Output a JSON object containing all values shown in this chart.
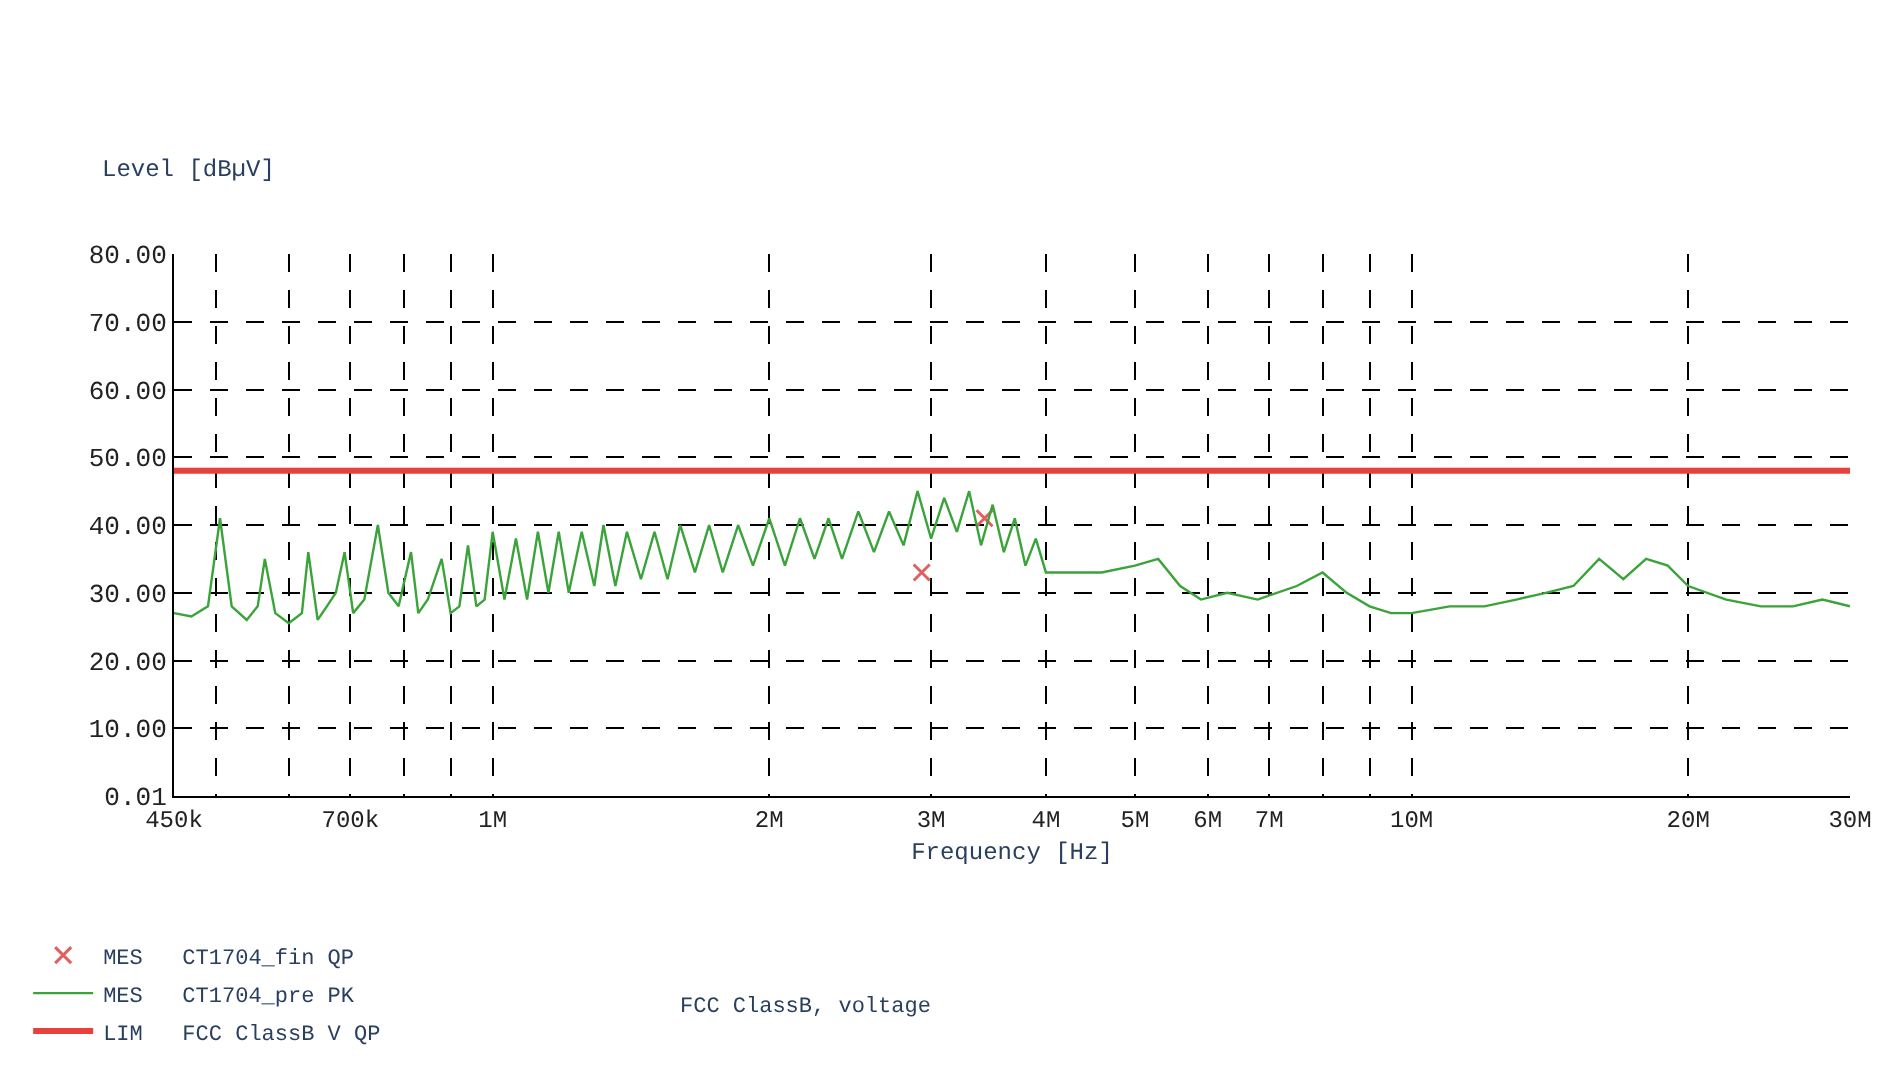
{
  "chart_data": {
    "type": "line",
    "ylabel": "Level [dBµV]",
    "xlabel": "Frequency [Hz]",
    "log": "x",
    "grid": true,
    "legend": "bottom left",
    "xlim": [
      450000,
      30000000
    ],
    "ylim": [
      0.01,
      80
    ],
    "xticks": [
      {
        "value": 450000,
        "label": "450k"
      },
      {
        "value": 500000,
        "label": null
      },
      {
        "value": 600000,
        "label": null
      },
      {
        "value": 700000,
        "label": "700k"
      },
      {
        "value": 800000,
        "label": null
      },
      {
        "value": 900000,
        "label": null
      },
      {
        "value": 1000000,
        "label": "1M"
      },
      {
        "value": 2000000,
        "label": "2M"
      },
      {
        "value": 3000000,
        "label": "3M"
      },
      {
        "value": 4000000,
        "label": "4M"
      },
      {
        "value": 5000000,
        "label": "5M"
      },
      {
        "value": 6000000,
        "label": "6M"
      },
      {
        "value": 7000000,
        "label": "7M"
      },
      {
        "value": 8000000,
        "label": null
      },
      {
        "value": 9000000,
        "label": null
      },
      {
        "value": 10000000,
        "label": "10M"
      },
      {
        "value": 20000000,
        "label": "20M"
      },
      {
        "value": 30000000,
        "label": "30M"
      }
    ],
    "yticks": [
      0.01,
      {
        "value": 10,
        "label": "10.00"
      },
      {
        "value": 20,
        "label": "20.00"
      },
      {
        "value": 30,
        "label": "30.00"
      },
      {
        "value": 40,
        "label": "40.00"
      },
      {
        "value": 50,
        "label": "50.00"
      },
      {
        "value": 60,
        "label": "60.00"
      },
      {
        "value": 70,
        "label": "70.00"
      },
      {
        "value": 80,
        "label": "80.00"
      }
    ],
    "series": [
      {
        "name": "MES   CT1704_fin QP",
        "type": "scatter",
        "marker": "cross",
        "color": "#e06060",
        "x": [
          2930000,
          3430000
        ],
        "values": [
          33,
          41
        ]
      },
      {
        "name": "MES   CT1704_pre PK",
        "color": "#3aa33a",
        "x": [
          450000,
          470000,
          490000,
          505000,
          520000,
          540000,
          555000,
          565000,
          580000,
          600000,
          620000,
          630000,
          645000,
          660000,
          675000,
          690000,
          705000,
          725000,
          750000,
          770000,
          790000,
          815000,
          830000,
          850000,
          880000,
          900000,
          920000,
          940000,
          960000,
          980000,
          1000000,
          1030000,
          1060000,
          1090000,
          1120000,
          1150000,
          1180000,
          1210000,
          1250000,
          1290000,
          1320000,
          1360000,
          1400000,
          1450000,
          1500000,
          1550000,
          1600000,
          1660000,
          1720000,
          1780000,
          1850000,
          1920000,
          2000000,
          2080000,
          2160000,
          2240000,
          2320000,
          2400000,
          2500000,
          2600000,
          2700000,
          2800000,
          2900000,
          3000000,
          3100000,
          3200000,
          3300000,
          3400000,
          3500000,
          3600000,
          3700000,
          3800000,
          3900000,
          4000000,
          4300000,
          4600000,
          5000000,
          5300000,
          5600000,
          5900000,
          6300000,
          6800000,
          7500000,
          8000000,
          8500000,
          9000000,
          9500000,
          10000000,
          11000000,
          12000000,
          13000000,
          14000000,
          15000000,
          16000000,
          17000000,
          18000000,
          19000000,
          20000000,
          22000000,
          24000000,
          26000000,
          28000000,
          30000000
        ],
        "values": [
          27,
          26.5,
          28,
          41,
          28,
          26,
          28,
          35,
          27,
          25.5,
          27,
          36,
          26,
          28,
          30,
          36,
          27,
          29,
          40,
          30,
          28,
          36,
          27,
          29,
          35,
          27,
          28,
          37,
          28,
          29,
          39,
          29,
          38,
          29,
          39,
          30,
          39,
          30,
          39,
          31,
          40,
          31,
          39,
          32,
          39,
          32,
          40,
          33,
          40,
          33,
          40,
          34,
          41,
          34,
          41,
          35,
          41,
          35,
          42,
          36,
          42,
          37,
          45,
          38,
          44,
          39,
          45,
          37,
          43,
          36,
          41,
          34,
          38,
          33,
          33,
          33,
          34,
          35,
          31,
          29,
          30,
          29,
          31,
          33,
          30,
          28,
          27,
          27,
          28,
          28,
          29,
          30,
          31,
          35,
          32,
          35,
          34,
          31,
          29,
          28,
          28,
          29,
          28
        ]
      },
      {
        "name": "LIM   FCC ClassB V QP",
        "color": "#e8403a",
        "x": [
          450000,
          30000000
        ],
        "values": [
          48,
          48
        ]
      }
    ],
    "annotations": [
      "FCC ClassB, voltage"
    ]
  }
}
